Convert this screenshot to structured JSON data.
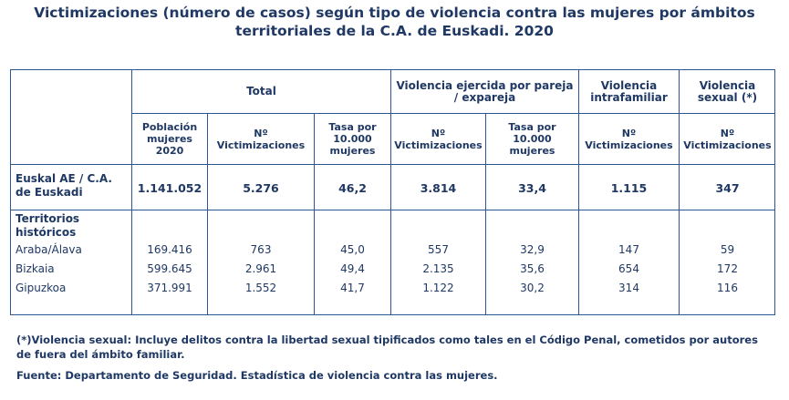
{
  "title_line1": "Victimizaciones (número de casos) según tipo de violencia contra las mujeres por ámbitos",
  "title_line2": "territoriales de la C.A. de Euskadi. 2020",
  "groups": {
    "total": "Total",
    "pareja_l1": "Violencia ejercida por pareja",
    "pareja_l2": "/ expareja",
    "intra_l1": "Violencia",
    "intra_l2": "intrafamiliar",
    "sexual_l1": "Violencia",
    "sexual_l2": "sexual (*)"
  },
  "sub": {
    "poblacion": [
      "Población",
      "mujeres",
      "2020"
    ],
    "victim": [
      "Nº",
      "Victimizaciones"
    ],
    "tasa": [
      "Tasa por",
      "10.000",
      "mujeres"
    ]
  },
  "total_row": {
    "label_l1": "Euskal AE / C.A.",
    "label_l2": "de Euskadi",
    "values": [
      "1.141.052",
      "5.276",
      "46,2",
      "3.814",
      "33,4",
      "1.115",
      "347"
    ]
  },
  "th_label_l1": "Territorios",
  "th_label_l2": "históricos",
  "rows": [
    {
      "name": "Araba/Álava",
      "values": [
        "169.416",
        "763",
        "45,0",
        "557",
        "32,9",
        "147",
        "59"
      ]
    },
    {
      "name": "Bizkaia",
      "values": [
        "599.645",
        "2.961",
        "49,4",
        "2.135",
        "35,6",
        "654",
        "172"
      ]
    },
    {
      "name": "Gipuzkoa",
      "values": [
        "371.991",
        "1.552",
        "41,7",
        "1.122",
        "30,2",
        "314",
        "116"
      ]
    }
  ],
  "note_l1": "(*)Violencia sexual: Incluye delitos contra la libertad sexual tipificados como tales en el Código Penal, cometidos por autores",
  "note_l2": "de fuera del ámbito familiar.",
  "source": "Fuente: Departamento de Seguridad. Estadística de violencia contra las mujeres."
}
